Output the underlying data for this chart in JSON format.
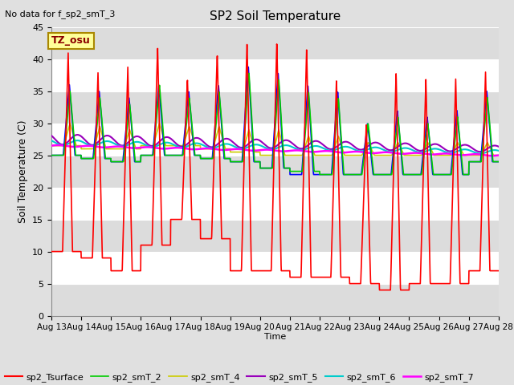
{
  "title": "SP2 Soil Temperature",
  "no_data_text": "No data for f_sp2_smT_3",
  "tz_label": "TZ_osu",
  "ylabel": "Soil Temperature (C)",
  "xlabel": "Time",
  "ylim": [
    0,
    45
  ],
  "yticks": [
    0,
    5,
    10,
    15,
    20,
    25,
    30,
    35,
    40,
    45
  ],
  "date_labels": [
    "Aug 13",
    "Aug 14",
    "Aug 15",
    "Aug 16",
    "Aug 17",
    "Aug 18",
    "Aug 19",
    "Aug 20",
    "Aug 21",
    "Aug 22",
    "Aug 23",
    "Aug 24",
    "Aug 25",
    "Aug 26",
    "Aug 27",
    "Aug 28"
  ],
  "series": {
    "sp2_Tsurface": {
      "color": "#FF0000",
      "lw": 1.2
    },
    "sp2_smT_1": {
      "color": "#0000FF",
      "lw": 1.2
    },
    "sp2_smT_2": {
      "color": "#00CC00",
      "lw": 1.2
    },
    "sp2_smT_4": {
      "color": "#CCCC00",
      "lw": 1.2
    },
    "sp2_smT_5": {
      "color": "#9900BB",
      "lw": 1.5
    },
    "sp2_smT_6": {
      "color": "#00CCCC",
      "lw": 1.5
    },
    "sp2_smT_7": {
      "color": "#FF00FF",
      "lw": 1.8
    }
  },
  "fig_bg": "#E0E0E0",
  "plot_bg_light": "#FFFFFF",
  "plot_bg_dark": "#DCDCDC",
  "grid_color": "#FFFFFF"
}
